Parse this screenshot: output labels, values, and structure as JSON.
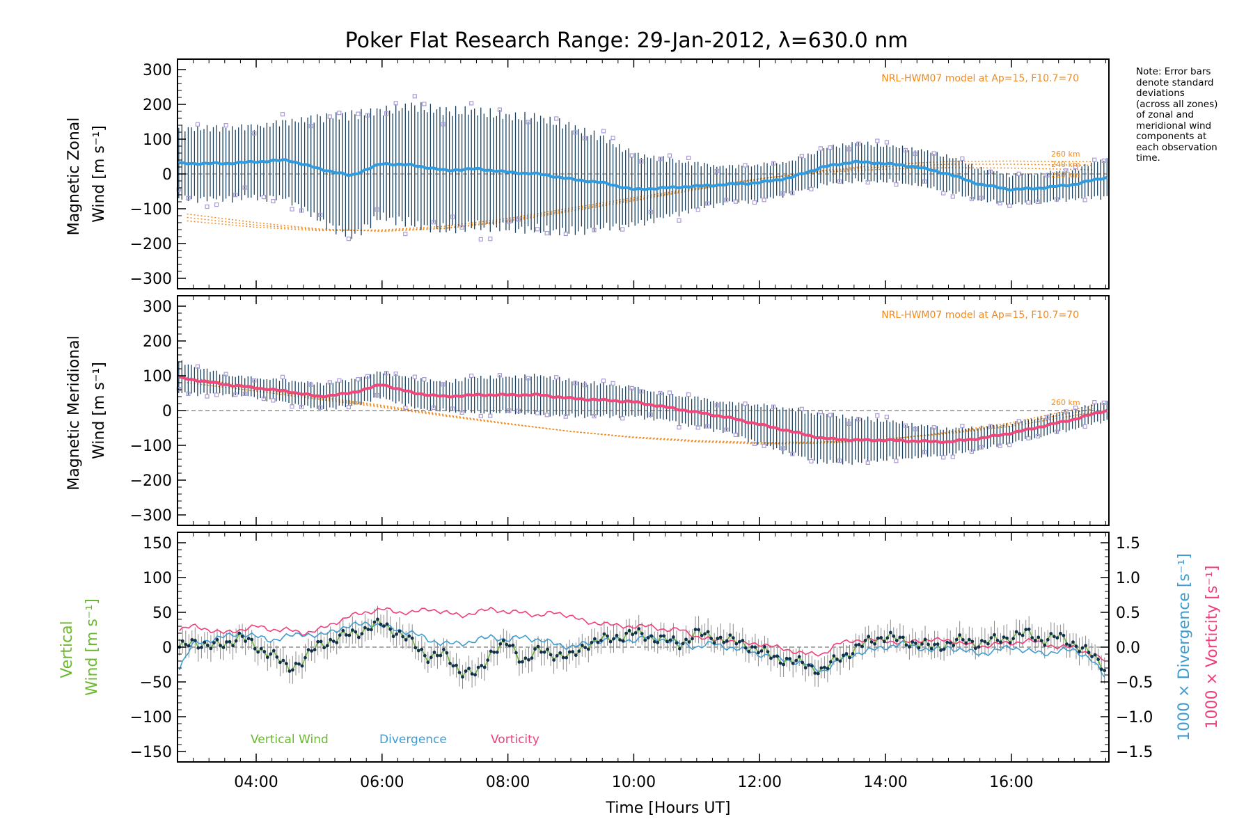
{
  "title_prefix": "Poker Flat Research Range: 29-Jan-2012, ",
  "title_lambda": "λ",
  "title_suffix": "=630.0 nm",
  "note_lines": [
    "Note: Error bars",
    "denote standard",
    "deviations",
    "(across all zones)",
    "of zonal and",
    "meridional wind",
    "components at",
    "each observation",
    "time."
  ],
  "colors": {
    "zonal_mean": "#2f9be0",
    "meridional_mean": "#f0487a",
    "errorbar": "#1b3f5a",
    "outlier": "#a89bd8",
    "model": "#f08a1e",
    "vertical": "#6ab82f",
    "divergence": "#3f9cd0",
    "vorticity": "#ef3f78",
    "vertical_points": "#12304a",
    "vertical_errorbar": "#8a8a8a"
  },
  "chart_data": [
    {
      "type": "line",
      "panel": "zonal",
      "ylabel_line1": "Magnetic Zonal",
      "ylabel_line2": "Wind [m s⁻¹]",
      "ylim": [
        -330,
        330
      ],
      "yticks": [
        -300,
        -200,
        -100,
        0,
        100,
        200,
        300
      ],
      "xlim": [
        2.75,
        17.55
      ],
      "model_label": "NRL-HWM07 model at Ap=15, F10.7=70",
      "model_altitude_labels": [
        "260 km",
        "240 km",
        "220 km"
      ],
      "mean_series": {
        "name": "Magnetic zonal wind",
        "x": [
          2.75,
          3.5,
          4.0,
          4.5,
          5.0,
          5.5,
          6.0,
          6.5,
          7.0,
          7.5,
          8.0,
          8.5,
          9.0,
          9.5,
          10.0,
          10.5,
          11.0,
          11.5,
          12.0,
          12.5,
          13.0,
          13.5,
          14.0,
          14.5,
          15.0,
          15.5,
          16.0,
          16.5,
          17.0,
          17.5
        ],
        "y": [
          30,
          30,
          35,
          40,
          15,
          -5,
          30,
          25,
          10,
          15,
          5,
          0,
          -15,
          -25,
          -45,
          -40,
          -35,
          -30,
          -25,
          -10,
          20,
          35,
          30,
          20,
          0,
          -30,
          -45,
          -40,
          -30,
          -10
        ]
      },
      "errorbar_std": {
        "x": [
          2.75,
          3.5,
          4.0,
          4.5,
          5.0,
          5.5,
          6.0,
          6.5,
          7.0,
          7.5,
          8.0,
          8.5,
          9.0,
          9.5,
          10.0,
          10.5,
          11.0,
          11.5,
          12.0,
          12.5,
          13.0,
          13.5,
          14.0,
          14.5,
          15.0,
          15.5,
          16.0,
          16.5,
          17.0,
          17.5
        ],
        "std": [
          110,
          110,
          110,
          120,
          160,
          190,
          165,
          185,
          185,
          180,
          175,
          175,
          165,
          140,
          110,
          90,
          70,
          55,
          55,
          50,
          55,
          60,
          55,
          55,
          55,
          50,
          45,
          45,
          45,
          60
        ]
      },
      "model_curves": [
        {
          "label": "260 km",
          "x": [
            2.9,
            4.0,
            5.0,
            6.0,
            7.0,
            8.0,
            9.0,
            10.0,
            11.0,
            12.0,
            13.0,
            14.0,
            15.0,
            16.0,
            17.3
          ],
          "y": [
            -115,
            -140,
            -158,
            -165,
            -157,
            -137,
            -107,
            -77,
            -45,
            -15,
            10,
            27,
            36,
            37,
            35
          ]
        },
        {
          "label": "240 km",
          "x": [
            2.9,
            4.0,
            5.0,
            6.0,
            7.0,
            8.0,
            9.0,
            10.0,
            11.0,
            12.0,
            13.0,
            14.0,
            15.0,
            16.0,
            17.3
          ],
          "y": [
            -125,
            -147,
            -160,
            -163,
            -155,
            -133,
            -103,
            -73,
            -43,
            -14,
            8,
            21,
            28,
            28,
            25
          ]
        },
        {
          "label": "220 km",
          "x": [
            2.9,
            4.0,
            5.0,
            6.0,
            7.0,
            8.0,
            9.0,
            10.0,
            11.0,
            12.0,
            13.0,
            14.0,
            15.0,
            16.0,
            17.3
          ],
          "y": [
            -135,
            -153,
            -163,
            -161,
            -150,
            -128,
            -98,
            -68,
            -40,
            -13,
            5,
            14,
            18,
            17,
            12
          ]
        }
      ]
    },
    {
      "type": "line",
      "panel": "meridional",
      "ylabel_line1": "Magnetic Meridional",
      "ylabel_line2": "Wind [m s⁻¹]",
      "ylim": [
        -330,
        330
      ],
      "yticks": [
        -300,
        -200,
        -100,
        0,
        100,
        200,
        300
      ],
      "xlim": [
        2.75,
        17.55
      ],
      "model_label": "NRL-HWM07 model at Ap=15, F10.7=70",
      "model_altitude_labels": [
        "260 km"
      ],
      "mean_series": {
        "name": "Magnetic meridional wind",
        "x": [
          2.75,
          3.5,
          4.0,
          4.5,
          5.0,
          5.5,
          6.0,
          6.5,
          7.0,
          7.5,
          8.0,
          8.5,
          9.0,
          9.5,
          10.0,
          10.5,
          11.0,
          11.5,
          12.0,
          12.5,
          13.0,
          13.5,
          14.0,
          14.5,
          15.0,
          15.5,
          16.0,
          16.5,
          17.0,
          17.5
        ],
        "y": [
          95,
          75,
          65,
          55,
          40,
          50,
          75,
          50,
          40,
          45,
          45,
          45,
          35,
          30,
          25,
          10,
          -5,
          -20,
          -40,
          -60,
          -80,
          -85,
          -85,
          -88,
          -90,
          -80,
          -65,
          -45,
          -25,
          0
        ]
      },
      "errorbar_std": {
        "x": [
          2.75,
          3.5,
          4.0,
          4.5,
          5.0,
          5.5,
          6.0,
          6.5,
          7.0,
          7.5,
          8.0,
          8.5,
          9.0,
          9.5,
          10.0,
          10.5,
          11.0,
          11.5,
          12.0,
          12.5,
          13.0,
          13.5,
          14.0,
          14.5,
          15.0,
          15.5,
          16.0,
          16.5,
          17.0,
          17.5
        ],
        "std": [
          50,
          30,
          30,
          35,
          40,
          40,
          40,
          45,
          45,
          55,
          55,
          60,
          55,
          50,
          45,
          40,
          45,
          45,
          60,
          70,
          75,
          70,
          60,
          50,
          40,
          35,
          30,
          30,
          30,
          30
        ]
      },
      "model_curves": [
        {
          "label": "260 km",
          "x": [
            2.9,
            4.0,
            5.0,
            6.0,
            7.0,
            8.0,
            9.0,
            10.0,
            11.0,
            12.0,
            13.0,
            14.0,
            15.0,
            16.0,
            17.3
          ],
          "y": [
            95,
            68,
            40,
            15,
            -12,
            -37,
            -60,
            -78,
            -90,
            -96,
            -94,
            -84,
            -62,
            -35,
            15
          ]
        },
        {
          "label": "",
          "x": [
            2.9,
            4.0,
            5.0,
            6.0,
            7.0,
            8.0,
            9.0,
            10.0,
            11.0,
            12.0,
            13.0,
            14.0,
            15.0,
            16.0,
            17.3
          ],
          "y": [
            88,
            62,
            36,
            12,
            -14,
            -38,
            -60,
            -77,
            -88,
            -94,
            -92,
            -83,
            -64,
            -40,
            5
          ]
        },
        {
          "label": "",
          "x": [
            2.9,
            4.0,
            5.0,
            6.0,
            7.0,
            8.0,
            9.0,
            10.0,
            11.0,
            12.0,
            13.0,
            14.0,
            15.0,
            16.0,
            17.3
          ],
          "y": [
            80,
            56,
            32,
            9,
            -16,
            -39,
            -60,
            -76,
            -86,
            -92,
            -90,
            -82,
            -66,
            -45,
            -5
          ]
        }
      ]
    },
    {
      "type": "line",
      "panel": "vertical",
      "ylabel_line1": "Vertical",
      "ylabel_line2": "Wind [m s⁻¹]",
      "ylim": [
        -165,
        165
      ],
      "yticks": [
        -150,
        -100,
        -50,
        0,
        50,
        100,
        150
      ],
      "y2label_line1": "1000 × Divergence [s⁻¹]",
      "y2label_line2": "1000 × Vorticity [s⁻¹]",
      "y2lim": [
        -1.65,
        1.65
      ],
      "y2ticks": [
        -1.5,
        -1.0,
        -0.5,
        0.0,
        0.5,
        1.0,
        1.5
      ],
      "y2ticklabels": [
        "−1.5",
        "−1.0",
        "−0.5",
        "0.0",
        "0.5",
        "1.0",
        "1.5"
      ],
      "xlim": [
        2.75,
        17.55
      ],
      "xticks": [
        4,
        6,
        8,
        10,
        12,
        14,
        16
      ],
      "xticklabels": [
        "04:00",
        "06:00",
        "08:00",
        "10:00",
        "12:00",
        "14:00",
        "16:00"
      ],
      "xlabel": "Time [Hours UT]",
      "legend": [
        "Vertical Wind",
        "Divergence",
        "Vorticity"
      ],
      "series": [
        {
          "name": "Vertical Wind",
          "axis": "left",
          "x": [
            2.75,
            3.0,
            3.25,
            3.5,
            3.75,
            4.0,
            4.25,
            4.5,
            4.75,
            5.0,
            5.25,
            5.5,
            5.75,
            6.0,
            6.25,
            6.5,
            6.75,
            7.0,
            7.25,
            7.5,
            7.75,
            8.0,
            8.25,
            8.5,
            8.75,
            9.0,
            9.25,
            9.5,
            9.75,
            10.0,
            10.25,
            10.5,
            10.75,
            11.0,
            11.25,
            11.5,
            11.75,
            12.0,
            12.25,
            12.5,
            12.75,
            13.0,
            13.25,
            13.5,
            13.75,
            14.0,
            14.25,
            14.5,
            14.75,
            15.0,
            15.25,
            15.5,
            15.75,
            16.0,
            16.25,
            16.5,
            16.75,
            17.0,
            17.25,
            17.5
          ],
          "y": [
            -5,
            10,
            0,
            5,
            15,
            0,
            -10,
            -30,
            -20,
            5,
            10,
            20,
            25,
            35,
            20,
            5,
            -15,
            -10,
            -35,
            -40,
            -5,
            5,
            -20,
            -5,
            -10,
            -15,
            5,
            10,
            15,
            20,
            15,
            10,
            5,
            20,
            15,
            10,
            5,
            -5,
            -15,
            -20,
            -25,
            -35,
            -15,
            -5,
            10,
            15,
            10,
            5,
            0,
            5,
            10,
            5,
            10,
            15,
            20,
            10,
            15,
            5,
            -10,
            -30
          ]
        },
        {
          "name": "Divergence",
          "axis": "right",
          "x": [
            2.75,
            3.0,
            3.25,
            3.5,
            3.75,
            4.0,
            4.25,
            4.5,
            4.75,
            5.0,
            5.25,
            5.5,
            5.75,
            6.0,
            6.25,
            6.5,
            6.75,
            7.0,
            7.25,
            7.5,
            7.75,
            8.0,
            8.25,
            8.5,
            8.75,
            9.0,
            9.25,
            9.5,
            9.75,
            10.0,
            10.25,
            10.5,
            10.75,
            11.0,
            11.25,
            11.5,
            11.75,
            12.0,
            12.25,
            12.5,
            12.75,
            13.0,
            13.25,
            13.5,
            13.75,
            14.0,
            14.25,
            14.5,
            14.75,
            15.0,
            15.25,
            15.5,
            15.75,
            16.0,
            16.25,
            16.5,
            16.75,
            17.0,
            17.25,
            17.5
          ],
          "y": [
            -0.35,
            0.05,
            0.1,
            0.15,
            0.2,
            0.15,
            0.1,
            0.15,
            0.2,
            0.15,
            0.25,
            0.3,
            0.35,
            0.3,
            0.25,
            0.2,
            0.1,
            0.05,
            0.05,
            0.1,
            0.15,
            0.1,
            0.15,
            0.1,
            0.05,
            0.0,
            0.05,
            0.1,
            0.1,
            0.1,
            0.15,
            0.1,
            0.05,
            0.0,
            0.05,
            0.0,
            -0.05,
            -0.1,
            -0.15,
            -0.2,
            -0.25,
            -0.35,
            -0.2,
            -0.1,
            -0.05,
            0.0,
            0.05,
            0.0,
            -0.05,
            0.0,
            -0.05,
            -0.1,
            -0.05,
            0.0,
            -0.05,
            -0.1,
            -0.05,
            -0.05,
            -0.15,
            -0.45
          ]
        },
        {
          "name": "Vorticity",
          "axis": "right",
          "x": [
            2.75,
            3.0,
            3.25,
            3.5,
            3.75,
            4.0,
            4.25,
            4.5,
            4.75,
            5.0,
            5.25,
            5.5,
            5.75,
            6.0,
            6.25,
            6.5,
            6.75,
            7.0,
            7.25,
            7.5,
            7.75,
            8.0,
            8.25,
            8.5,
            8.75,
            9.0,
            9.25,
            9.5,
            9.75,
            10.0,
            10.25,
            10.5,
            10.75,
            11.0,
            11.25,
            11.5,
            11.75,
            12.0,
            12.25,
            12.5,
            12.75,
            13.0,
            13.25,
            13.5,
            13.75,
            14.0,
            14.25,
            14.5,
            14.75,
            15.0,
            15.25,
            15.5,
            15.75,
            16.0,
            16.25,
            16.5,
            16.75,
            17.0,
            17.25,
            17.5
          ],
          "y": [
            0.25,
            0.3,
            0.25,
            0.2,
            0.25,
            0.3,
            0.25,
            0.25,
            0.2,
            0.25,
            0.35,
            0.45,
            0.5,
            0.55,
            0.5,
            0.5,
            0.55,
            0.5,
            0.45,
            0.5,
            0.55,
            0.5,
            0.5,
            0.45,
            0.5,
            0.45,
            0.35,
            0.35,
            0.3,
            0.3,
            0.3,
            0.25,
            0.25,
            0.15,
            0.1,
            0.1,
            0.05,
            0.05,
            0.0,
            -0.05,
            -0.1,
            -0.1,
            0.05,
            0.1,
            0.1,
            0.1,
            0.05,
            0.1,
            0.1,
            0.1,
            0.05,
            0.0,
            0.05,
            0.05,
            0.1,
            0.05,
            0.0,
            0.0,
            -0.1,
            -0.2
          ]
        }
      ]
    }
  ]
}
